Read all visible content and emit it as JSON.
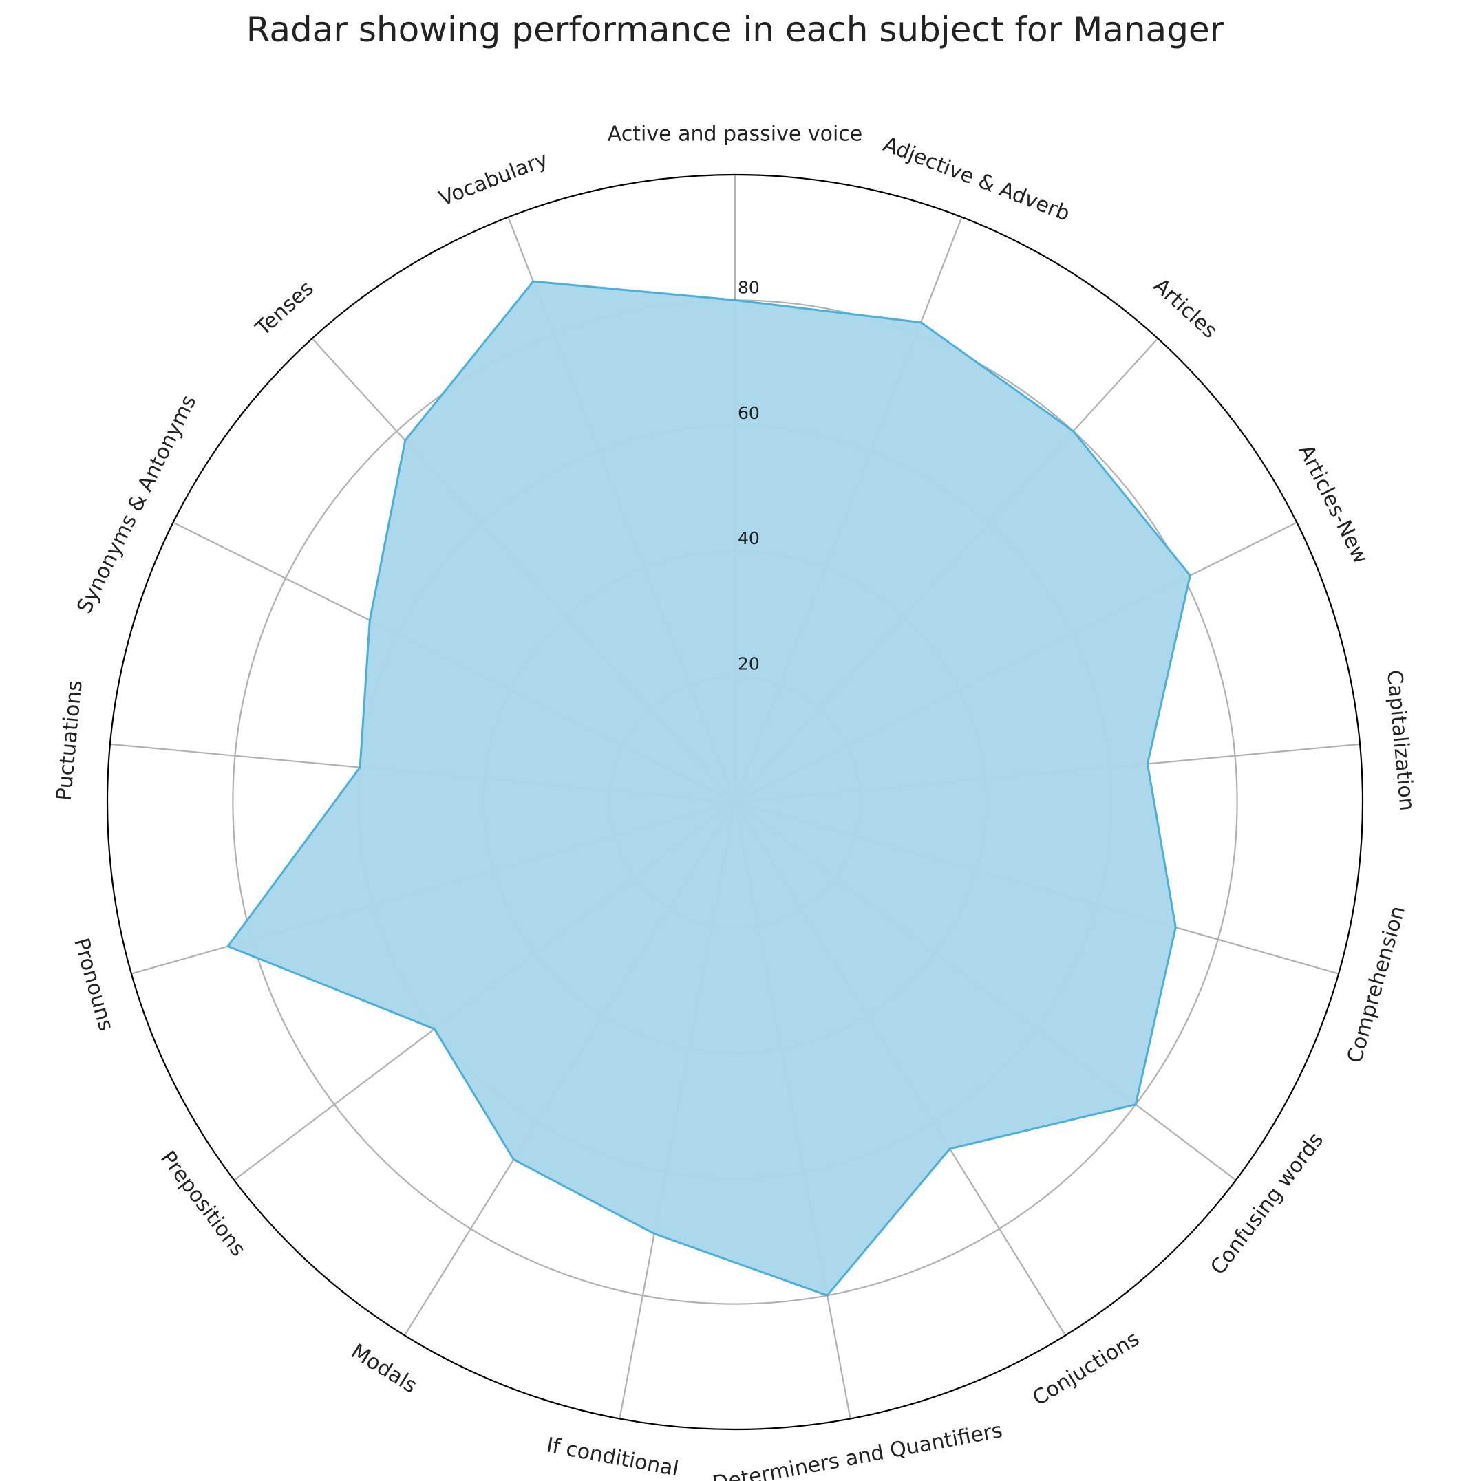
{
  "chart_data": {
    "type": "radar",
    "title": "Radar showing performance in each subject for Manager",
    "categories": [
      "Active and passive voice",
      "Adjective & Adverb",
      "Articles",
      "Articles-New",
      "Capitalization",
      "Comprehension",
      "Confusing words",
      "Conjuctions",
      "Determiners and Quantifiers",
      "If conditional",
      "Modals",
      "Prepositions",
      "Pronouns",
      "Puctuations",
      "Synonyms & Antonyms",
      "Tenses",
      "Vocabulary"
    ],
    "values": [
      80,
      82,
      80,
      81,
      66,
      73,
      80,
      65,
      80,
      70,
      67,
      60,
      84,
      60,
      65,
      78,
      89
    ],
    "rlim": [
      0,
      100
    ],
    "rticks": [
      20,
      40,
      60,
      80
    ],
    "rtick_labels": [
      "20",
      "40",
      "60",
      "80"
    ],
    "grid": true,
    "colors": {
      "fill": "#a8d7ea",
      "line": "#4ab0da",
      "grid": "#b0b0b0",
      "spine": "#000000"
    }
  }
}
